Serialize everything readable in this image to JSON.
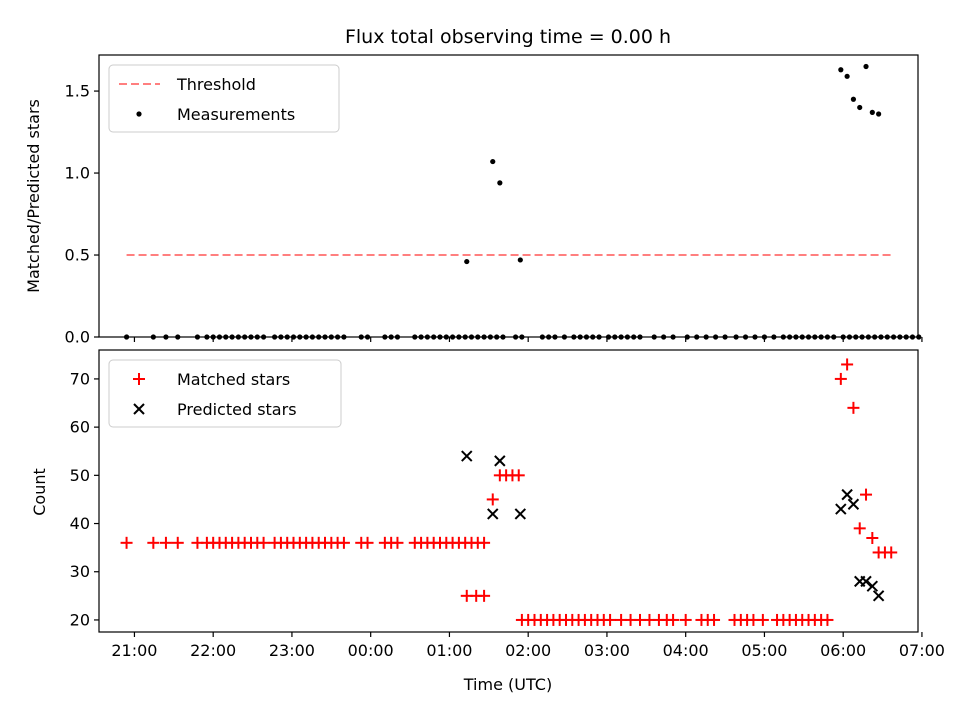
{
  "chart_data": [
    {
      "type": "scatter",
      "title": "Flux total observing time = 0.00 h",
      "ylabel": "Matched/Predicted stars",
      "xlim": [
        -0.45,
        9.95
      ],
      "ylim": [
        0,
        1.72
      ],
      "yticks": [
        0.0,
        0.5,
        1.0,
        1.5
      ],
      "yticklabels": [
        "0.0",
        "0.5",
        "1.0",
        "1.5"
      ],
      "legend_position": "upper-left",
      "legend": [
        "Threshold",
        "Measurements"
      ],
      "threshold": {
        "name": "Threshold",
        "y": 0.5,
        "x_range": [
          -0.1,
          9.63
        ],
        "color": "#ff7f7f"
      },
      "measurements": {
        "name": "Measurements",
        "color": "#000000",
        "points": [
          [
            -0.1,
            0
          ],
          [
            0.24,
            0
          ],
          [
            0.4,
            0
          ],
          [
            0.55,
            0
          ],
          [
            0.8,
            0
          ],
          [
            0.92,
            0
          ],
          [
            1.0,
            0
          ],
          [
            1.08,
            0
          ],
          [
            1.16,
            0
          ],
          [
            1.24,
            0
          ],
          [
            1.32,
            0
          ],
          [
            1.4,
            0
          ],
          [
            1.48,
            0
          ],
          [
            1.56,
            0
          ],
          [
            1.64,
            0
          ],
          [
            1.78,
            0
          ],
          [
            1.86,
            0
          ],
          [
            1.94,
            0
          ],
          [
            2.02,
            0
          ],
          [
            2.1,
            0
          ],
          [
            2.18,
            0
          ],
          [
            2.26,
            0
          ],
          [
            2.34,
            0
          ],
          [
            2.42,
            0
          ],
          [
            2.5,
            0
          ],
          [
            2.58,
            0
          ],
          [
            2.66,
            0
          ],
          [
            2.88,
            0
          ],
          [
            2.96,
            0
          ],
          [
            3.18,
            0
          ],
          [
            3.26,
            0
          ],
          [
            3.34,
            0
          ],
          [
            3.56,
            0
          ],
          [
            3.64,
            0
          ],
          [
            3.72,
            0
          ],
          [
            3.8,
            0
          ],
          [
            3.88,
            0
          ],
          [
            3.96,
            0
          ],
          [
            4.04,
            0
          ],
          [
            4.12,
            0
          ],
          [
            4.2,
            0
          ],
          [
            4.28,
            0
          ],
          [
            4.36,
            0
          ],
          [
            4.44,
            0
          ],
          [
            4.52,
            0
          ],
          [
            4.6,
            0
          ],
          [
            4.68,
            0
          ],
          [
            4.84,
            0
          ],
          [
            4.92,
            0
          ],
          [
            5.18,
            0
          ],
          [
            5.26,
            0
          ],
          [
            5.34,
            0
          ],
          [
            5.46,
            0
          ],
          [
            5.58,
            0
          ],
          [
            5.66,
            0
          ],
          [
            5.74,
            0
          ],
          [
            5.82,
            0
          ],
          [
            5.9,
            0
          ],
          [
            6.02,
            0
          ],
          [
            6.1,
            0
          ],
          [
            6.18,
            0
          ],
          [
            6.26,
            0
          ],
          [
            6.34,
            0
          ],
          [
            6.42,
            0
          ],
          [
            6.6,
            0
          ],
          [
            6.72,
            0
          ],
          [
            6.84,
            0
          ],
          [
            7.02,
            0
          ],
          [
            7.14,
            0
          ],
          [
            7.26,
            0
          ],
          [
            7.38,
            0
          ],
          [
            7.5,
            0
          ],
          [
            7.64,
            0
          ],
          [
            7.76,
            0
          ],
          [
            7.88,
            0
          ],
          [
            8.0,
            0
          ],
          [
            8.12,
            0
          ],
          [
            8.24,
            0
          ],
          [
            8.32,
            0
          ],
          [
            8.4,
            0
          ],
          [
            8.48,
            0
          ],
          [
            8.56,
            0
          ],
          [
            8.64,
            0
          ],
          [
            8.72,
            0
          ],
          [
            8.8,
            0
          ],
          [
            8.88,
            0
          ],
          [
            9.0,
            0
          ],
          [
            9.08,
            0
          ],
          [
            9.16,
            0
          ],
          [
            9.24,
            0
          ],
          [
            9.32,
            0
          ],
          [
            9.4,
            0
          ],
          [
            9.48,
            0
          ],
          [
            9.56,
            0
          ],
          [
            9.64,
            0
          ],
          [
            9.72,
            0
          ],
          [
            9.8,
            0
          ],
          [
            9.88,
            0
          ],
          [
            9.96,
            0
          ],
          [
            4.22,
            0.46
          ],
          [
            4.55,
            1.07
          ],
          [
            4.64,
            0.94
          ],
          [
            4.9,
            0.47
          ],
          [
            8.97,
            1.63
          ],
          [
            9.05,
            1.59
          ],
          [
            9.13,
            1.45
          ],
          [
            9.21,
            1.4
          ],
          [
            9.29,
            1.65
          ],
          [
            9.37,
            1.37
          ],
          [
            9.45,
            1.36
          ]
        ]
      }
    },
    {
      "type": "scatter",
      "xlabel": "Time (UTC)",
      "ylabel": "Count",
      "xlim": [
        -0.45,
        9.95
      ],
      "ylim": [
        17.5,
        76
      ],
      "yticks": [
        20,
        30,
        40,
        50,
        60,
        70
      ],
      "yticklabels": [
        "20",
        "30",
        "40",
        "50",
        "60",
        "70"
      ],
      "xticks": [
        0,
        1,
        2,
        3,
        4,
        5,
        6,
        7,
        8,
        9,
        10
      ],
      "xticklabels": [
        "21:00",
        "22:00",
        "23:00",
        "00:00",
        "01:00",
        "02:00",
        "03:00",
        "04:00",
        "05:00",
        "06:00",
        "07:00"
      ],
      "legend_position": "upper-left",
      "legend": [
        "Matched stars",
        "Predicted stars"
      ],
      "series": [
        {
          "name": "Matched stars",
          "marker": "plus",
          "color": "#ff0000",
          "points": [
            [
              -0.1,
              36
            ],
            [
              0.24,
              36
            ],
            [
              0.4,
              36
            ],
            [
              0.55,
              36
            ],
            [
              0.8,
              36
            ],
            [
              0.92,
              36
            ],
            [
              1.0,
              36
            ],
            [
              1.08,
              36
            ],
            [
              1.16,
              36
            ],
            [
              1.24,
              36
            ],
            [
              1.32,
              36
            ],
            [
              1.4,
              36
            ],
            [
              1.48,
              36
            ],
            [
              1.56,
              36
            ],
            [
              1.64,
              36
            ],
            [
              1.78,
              36
            ],
            [
              1.86,
              36
            ],
            [
              1.94,
              36
            ],
            [
              2.02,
              36
            ],
            [
              2.1,
              36
            ],
            [
              2.18,
              36
            ],
            [
              2.26,
              36
            ],
            [
              2.34,
              36
            ],
            [
              2.42,
              36
            ],
            [
              2.5,
              36
            ],
            [
              2.58,
              36
            ],
            [
              2.66,
              36
            ],
            [
              2.88,
              36
            ],
            [
              2.96,
              36
            ],
            [
              3.18,
              36
            ],
            [
              3.26,
              36
            ],
            [
              3.34,
              36
            ],
            [
              3.56,
              36
            ],
            [
              3.64,
              36
            ],
            [
              3.72,
              36
            ],
            [
              3.8,
              36
            ],
            [
              3.88,
              36
            ],
            [
              3.96,
              36
            ],
            [
              4.04,
              36
            ],
            [
              4.12,
              36
            ],
            [
              4.2,
              36
            ],
            [
              4.28,
              36
            ],
            [
              4.36,
              36
            ],
            [
              4.44,
              36
            ],
            [
              4.22,
              25
            ],
            [
              4.34,
              25
            ],
            [
              4.44,
              25
            ],
            [
              4.55,
              45
            ],
            [
              4.64,
              50
            ],
            [
              4.72,
              50
            ],
            [
              4.8,
              50
            ],
            [
              4.88,
              50
            ],
            [
              4.92,
              20
            ],
            [
              5.0,
              20
            ],
            [
              5.08,
              20
            ],
            [
              5.16,
              20
            ],
            [
              5.24,
              20
            ],
            [
              5.32,
              20
            ],
            [
              5.4,
              20
            ],
            [
              5.48,
              20
            ],
            [
              5.56,
              20
            ],
            [
              5.64,
              20
            ],
            [
              5.72,
              20
            ],
            [
              5.8,
              20
            ],
            [
              5.88,
              20
            ],
            [
              5.96,
              20
            ],
            [
              6.04,
              20
            ],
            [
              6.18,
              20
            ],
            [
              6.3,
              20
            ],
            [
              6.42,
              20
            ],
            [
              6.54,
              20
            ],
            [
              6.66,
              20
            ],
            [
              6.76,
              20
            ],
            [
              6.84,
              20
            ],
            [
              7.0,
              20
            ],
            [
              7.2,
              20
            ],
            [
              7.28,
              20
            ],
            [
              7.36,
              20
            ],
            [
              7.62,
              20
            ],
            [
              7.7,
              20
            ],
            [
              7.78,
              20
            ],
            [
              7.86,
              20
            ],
            [
              7.98,
              20
            ],
            [
              8.16,
              20
            ],
            [
              8.24,
              20
            ],
            [
              8.32,
              20
            ],
            [
              8.4,
              20
            ],
            [
              8.48,
              20
            ],
            [
              8.56,
              20
            ],
            [
              8.64,
              20
            ],
            [
              8.72,
              20
            ],
            [
              8.8,
              20
            ],
            [
              8.97,
              70
            ],
            [
              9.05,
              73
            ],
            [
              9.13,
              64
            ],
            [
              9.21,
              39
            ],
            [
              9.29,
              46
            ],
            [
              9.37,
              37
            ],
            [
              9.45,
              34
            ],
            [
              9.53,
              34
            ],
            [
              9.61,
              34
            ]
          ]
        },
        {
          "name": "Predicted stars",
          "marker": "x",
          "color": "#000000",
          "points": [
            [
              4.22,
              54
            ],
            [
              4.55,
              42
            ],
            [
              4.64,
              53
            ],
            [
              4.9,
              42
            ],
            [
              8.97,
              43
            ],
            [
              9.05,
              46
            ],
            [
              9.13,
              44
            ],
            [
              9.21,
              28
            ],
            [
              9.29,
              28
            ],
            [
              9.37,
              27
            ],
            [
              9.45,
              25
            ]
          ]
        }
      ]
    }
  ]
}
